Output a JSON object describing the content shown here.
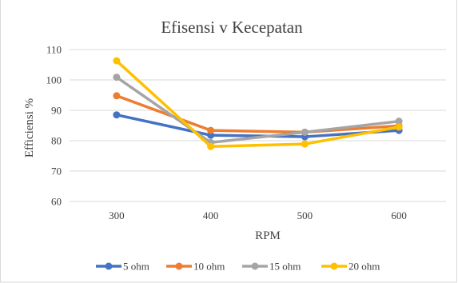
{
  "chart_data": {
    "type": "line",
    "title": "Efisensi v Kecepatan",
    "xlabel": "RPM",
    "ylabel": "Efficiensi %",
    "categories": [
      "300",
      "400",
      "500",
      "600"
    ],
    "yticks": [
      "60",
      "70",
      "80",
      "90",
      "100",
      "110"
    ],
    "ylim": [
      60,
      110
    ],
    "grid": true,
    "legend": "bottom",
    "series": [
      {
        "name": "5 ohm",
        "color": "#4472c4",
        "values": [
          88.5,
          81.8,
          81.3,
          83.4
        ]
      },
      {
        "name": "10 ohm",
        "color": "#ed7d31",
        "values": [
          94.8,
          83.4,
          82.8,
          84.9
        ]
      },
      {
        "name": "15 ohm",
        "color": "#a5a5a5",
        "values": [
          100.9,
          79.4,
          82.8,
          86.4
        ]
      },
      {
        "name": "20 ohm",
        "color": "#ffc000",
        "values": [
          106.3,
          78.1,
          78.9,
          84.5
        ]
      }
    ]
  }
}
